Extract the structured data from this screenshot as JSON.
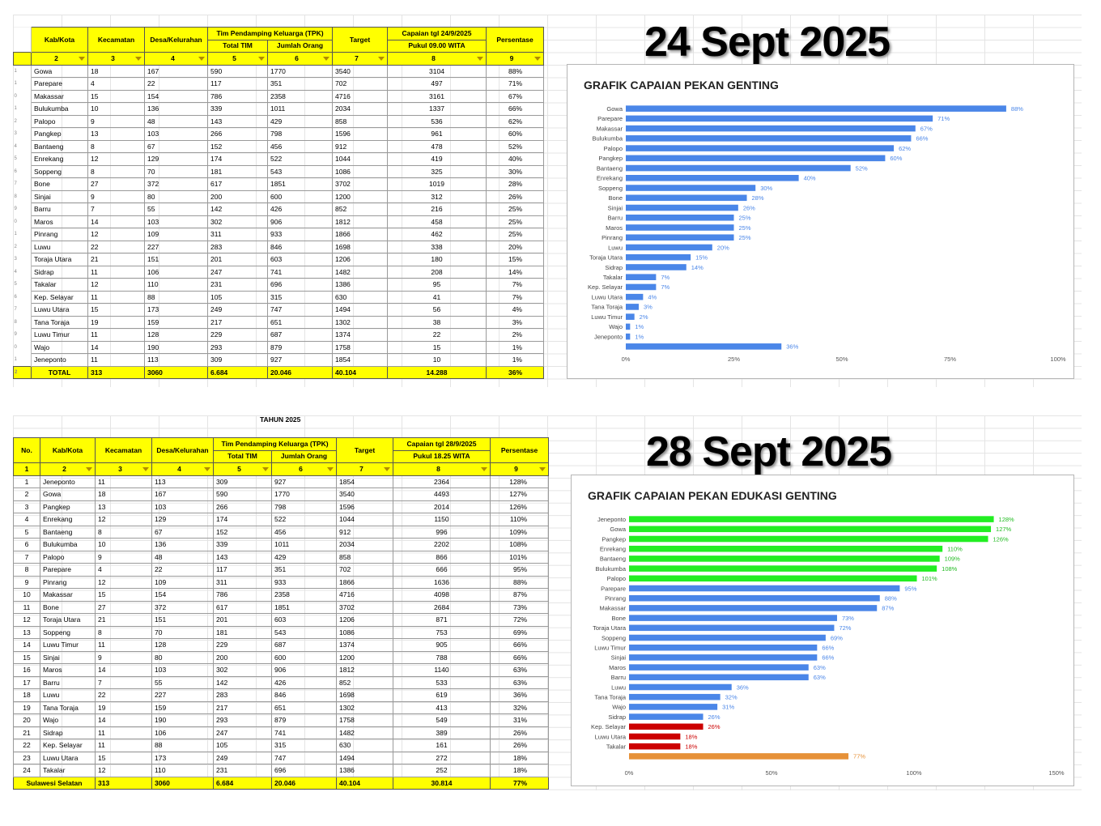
{
  "top": {
    "date_label": "24 Sept 2025",
    "headers": {
      "kab": "Kab/Kota",
      "kec": "Kecamatan",
      "desa": "Desa/Kelurahan",
      "tpk": "Tim Pendamping Keluarga (TPK)",
      "total_tim": "Total TIM",
      "jumlah_orang": "Jumlah Orang",
      "target": "Target",
      "capaian1": "Capaian tgl 24/9/2025",
      "capaian2": "Pukul  09.00 WITA",
      "persen": "Persentase"
    },
    "index_row": [
      "2",
      "3",
      "4",
      "5",
      "6",
      "7",
      "8",
      "9"
    ],
    "row_numbers": [
      "1",
      "1",
      "1",
      "0",
      "1",
      "2",
      "3",
      "4",
      "5",
      "6",
      "7",
      "8",
      "9",
      "0",
      "1",
      "2",
      "3",
      "4",
      "5",
      "6",
      "7",
      "8",
      "9",
      "0",
      "1",
      "2"
    ],
    "rows": [
      [
        "Gowa",
        "18",
        "167",
        "590",
        "1770",
        "3540",
        "3104",
        "88%"
      ],
      [
        "Parepare",
        "4",
        "22",
        "117",
        "351",
        "702",
        "497",
        "71%"
      ],
      [
        "Makassar",
        "15",
        "154",
        "786",
        "2358",
        "4716",
        "3161",
        "67%"
      ],
      [
        "Bulukumba",
        "10",
        "136",
        "339",
        "1011",
        "2034",
        "1337",
        "66%"
      ],
      [
        "Palopo",
        "9",
        "48",
        "143",
        "429",
        "858",
        "536",
        "62%"
      ],
      [
        "Pangkep",
        "13",
        "103",
        "266",
        "798",
        "1596",
        "961",
        "60%"
      ],
      [
        "Bantaeng",
        "8",
        "67",
        "152",
        "456",
        "912",
        "478",
        "52%"
      ],
      [
        "Enrekang",
        "12",
        "129",
        "174",
        "522",
        "1044",
        "419",
        "40%"
      ],
      [
        "Soppeng",
        "8",
        "70",
        "181",
        "543",
        "1086",
        "325",
        "30%"
      ],
      [
        "Bone",
        "27",
        "372",
        "617",
        "1851",
        "3702",
        "1019",
        "28%"
      ],
      [
        "Sinjai",
        "9",
        "80",
        "200",
        "600",
        "1200",
        "312",
        "26%"
      ],
      [
        "Barru",
        "7",
        "55",
        "142",
        "426",
        "852",
        "216",
        "25%"
      ],
      [
        "Maros",
        "14",
        "103",
        "302",
        "906",
        "1812",
        "458",
        "25%"
      ],
      [
        "Pinrang",
        "12",
        "109",
        "311",
        "933",
        "1866",
        "462",
        "25%"
      ],
      [
        "Luwu",
        "22",
        "227",
        "283",
        "846",
        "1698",
        "338",
        "20%"
      ],
      [
        "Toraja Utara",
        "21",
        "151",
        "201",
        "603",
        "1206",
        "180",
        "15%"
      ],
      [
        "Sidrap",
        "11",
        "106",
        "247",
        "741",
        "1482",
        "208",
        "14%"
      ],
      [
        "Takalar",
        "12",
        "110",
        "231",
        "696",
        "1386",
        "95",
        "7%"
      ],
      [
        "Kep. Selayar",
        "11",
        "88",
        "105",
        "315",
        "630",
        "41",
        "7%"
      ],
      [
        "Luwu Utara",
        "15",
        "173",
        "249",
        "747",
        "1494",
        "56",
        "4%"
      ],
      [
        "Tana Toraja",
        "19",
        "159",
        "217",
        "651",
        "1302",
        "38",
        "3%"
      ],
      [
        "Luwu Timur",
        "11",
        "128",
        "229",
        "687",
        "1374",
        "22",
        "2%"
      ],
      [
        "Wajo",
        "14",
        "190",
        "293",
        "879",
        "1758",
        "15",
        "1%"
      ],
      [
        "Jeneponto",
        "11",
        "113",
        "309",
        "927",
        "1854",
        "10",
        "1%"
      ]
    ],
    "total": [
      "TOTAL",
      "313",
      "3060",
      "6.684",
      "20.046",
      "40.104",
      "14.288",
      "36%"
    ],
    "chart_title": "GRAFIK CAPAIAN PEKAN GENTING"
  },
  "bottom": {
    "date_label": "28 Sept 2025",
    "tahun": "TAHUN 2025",
    "headers": {
      "no": "No.",
      "kab": "Kab/Kota",
      "kec": "Kecamatan",
      "desa": "Desa/Kelurahan",
      "tpk": "Tim Pendamping Keluarga (TPK)",
      "total_tim": "Total TIM",
      "jumlah_orang": "Jumlah Orang",
      "target": "Target",
      "capaian1": "Capaian tgl 28/9/2025",
      "capaian2": "Pukul  18.25 WITA",
      "persen": "Persentase"
    },
    "index_row": [
      "1",
      "2",
      "3",
      "4",
      "5",
      "6",
      "7",
      "8",
      "9"
    ],
    "rows": [
      [
        "1",
        "Jeneponto",
        "11",
        "113",
        "309",
        "927",
        "1854",
        "2364",
        "128%"
      ],
      [
        "2",
        "Gowa",
        "18",
        "167",
        "590",
        "1770",
        "3540",
        "4493",
        "127%"
      ],
      [
        "3",
        "Pangkep",
        "13",
        "103",
        "266",
        "798",
        "1596",
        "2014",
        "126%"
      ],
      [
        "4",
        "Enrekang",
        "12",
        "129",
        "174",
        "522",
        "1044",
        "1150",
        "110%"
      ],
      [
        "5",
        "Bantaeng",
        "8",
        "67",
        "152",
        "456",
        "912",
        "996",
        "109%"
      ],
      [
        "6",
        "Bulukumba",
        "10",
        "136",
        "339",
        "1011",
        "2034",
        "2202",
        "108%"
      ],
      [
        "7",
        "Palopo",
        "9",
        "48",
        "143",
        "429",
        "858",
        "866",
        "101%"
      ],
      [
        "8",
        "Parepare",
        "4",
        "22",
        "117",
        "351",
        "702",
        "666",
        "95%"
      ],
      [
        "9",
        "Pinrang",
        "12",
        "109",
        "311",
        "933",
        "1866",
        "1636",
        "88%"
      ],
      [
        "10",
        "Makassar",
        "15",
        "154",
        "786",
        "2358",
        "4716",
        "4098",
        "87%"
      ],
      [
        "11",
        "Bone",
        "27",
        "372",
        "617",
        "1851",
        "3702",
        "2684",
        "73%"
      ],
      [
        "12",
        "Toraja Utara",
        "21",
        "151",
        "201",
        "603",
        "1206",
        "871",
        "72%"
      ],
      [
        "13",
        "Soppeng",
        "8",
        "70",
        "181",
        "543",
        "1086",
        "753",
        "69%"
      ],
      [
        "14",
        "Luwu Timur",
        "11",
        "128",
        "229",
        "687",
        "1374",
        "905",
        "66%"
      ],
      [
        "15",
        "Sinjai",
        "9",
        "80",
        "200",
        "600",
        "1200",
        "788",
        "66%"
      ],
      [
        "16",
        "Maros",
        "14",
        "103",
        "302",
        "906",
        "1812",
        "1140",
        "63%"
      ],
      [
        "17",
        "Barru",
        "7",
        "55",
        "142",
        "426",
        "852",
        "533",
        "63%"
      ],
      [
        "18",
        "Luwu",
        "22",
        "227",
        "283",
        "846",
        "1698",
        "619",
        "36%"
      ],
      [
        "19",
        "Tana Toraja",
        "19",
        "159",
        "217",
        "651",
        "1302",
        "413",
        "32%"
      ],
      [
        "20",
        "Wajo",
        "14",
        "190",
        "293",
        "879",
        "1758",
        "549",
        "31%"
      ],
      [
        "21",
        "Sidrap",
        "11",
        "106",
        "247",
        "741",
        "1482",
        "389",
        "26%"
      ],
      [
        "22",
        "Kep. Selayar",
        "11",
        "88",
        "105",
        "315",
        "630",
        "161",
        "26%"
      ],
      [
        "23",
        "Luwu Utara",
        "15",
        "173",
        "249",
        "747",
        "1494",
        "272",
        "18%"
      ],
      [
        "24",
        "Takalar",
        "12",
        "110",
        "231",
        "696",
        "1386",
        "252",
        "18%"
      ]
    ],
    "total": [
      "Sulawesi Selatan",
      "313",
      "3060",
      "6.684",
      "20.046",
      "40.104",
      "30.814",
      "77%"
    ],
    "chart_title": "GRAFIK CAPAIAN PEKAN EDUKASI GENTING"
  },
  "chart_data": [
    {
      "type": "bar",
      "orientation": "horizontal",
      "title": "GRAFIK CAPAIAN PEKAN GENTING",
      "categories": [
        "Gowa",
        "Parepare",
        "Makassar",
        "Bulukumba",
        "Palopo",
        "Pangkep",
        "Bantaeng",
        "Enrekang",
        "Soppeng",
        "Bone",
        "Sinjai",
        "Barru",
        "Maros",
        "Pinrang",
        "Luwu",
        "Toraja Utara",
        "Sidrap",
        "Takalar",
        "Kep. Selayar",
        "Luwu Utara",
        "Tana Toraja",
        "Luwu Timur",
        "Wajo",
        "Jeneponto",
        ""
      ],
      "values": [
        88,
        71,
        67,
        66,
        62,
        60,
        52,
        40,
        30,
        28,
        26,
        25,
        25,
        25,
        20,
        15,
        14,
        7,
        7,
        4,
        3,
        2,
        1,
        1,
        36
      ],
      "data_labels": [
        "88%",
        "71%",
        "67%",
        "66%",
        "62%",
        "60%",
        "52%",
        "40%",
        "30%",
        "28%",
        "26%",
        "25%",
        "25%",
        "25%",
        "20%",
        "15%",
        "14%",
        "7%",
        "7%",
        "4%",
        "3%",
        "2%",
        "1%",
        "1%",
        "36%"
      ],
      "bar_colors": [
        "#4a86e8",
        "#4a86e8",
        "#4a86e8",
        "#4a86e8",
        "#4a86e8",
        "#4a86e8",
        "#4a86e8",
        "#4a86e8",
        "#4a86e8",
        "#4a86e8",
        "#4a86e8",
        "#4a86e8",
        "#4a86e8",
        "#4a86e8",
        "#4a86e8",
        "#4a86e8",
        "#4a86e8",
        "#4a86e8",
        "#4a86e8",
        "#4a86e8",
        "#4a86e8",
        "#4a86e8",
        "#4a86e8",
        "#4a86e8",
        "#4a86e8"
      ],
      "xlim": [
        0,
        100
      ],
      "xticks": [
        0,
        25,
        50,
        75,
        100
      ],
      "xtick_labels": [
        "0%",
        "25%",
        "50%",
        "75%",
        "100%"
      ],
      "grid": false
    },
    {
      "type": "bar",
      "orientation": "horizontal",
      "title": "GRAFIK CAPAIAN PEKAN EDUKASI GENTING",
      "categories": [
        "Jeneponto",
        "Gowa",
        "Pangkep",
        "Enrekang",
        "Bantaeng",
        "Bulukumba",
        "Palopo",
        "Parepare",
        "Pinrang",
        "Makassar",
        "Bone",
        "Toraja Utara",
        "Soppeng",
        "Luwu Timur",
        "Sinjai",
        "Maros",
        "Barru",
        "Luwu",
        "Tana Toraja",
        "Wajo",
        "Sidrap",
        "Kep. Selayar",
        "Luwu Utara",
        "Takalar",
        ""
      ],
      "values": [
        128,
        127,
        126,
        110,
        109,
        108,
        101,
        95,
        88,
        87,
        73,
        72,
        69,
        66,
        66,
        63,
        63,
        36,
        32,
        31,
        26,
        26,
        18,
        18,
        77
      ],
      "data_labels": [
        "128%",
        "127%",
        "126%",
        "110%",
        "109%",
        "108%",
        "101%",
        "95%",
        "88%",
        "87%",
        "73%",
        "72%",
        "69%",
        "66%",
        "66%",
        "63%",
        "63%",
        "36%",
        "32%",
        "31%",
        "26%",
        "26%",
        "18%",
        "18%",
        "77%"
      ],
      "bar_colors": [
        "#22ee22",
        "#22ee22",
        "#22ee22",
        "#22ee22",
        "#22ee22",
        "#22ee22",
        "#22ee22",
        "#4a86e8",
        "#4a86e8",
        "#4a86e8",
        "#4a86e8",
        "#4a86e8",
        "#4a86e8",
        "#4a86e8",
        "#4a86e8",
        "#4a86e8",
        "#4a86e8",
        "#4a86e8",
        "#4a86e8",
        "#4a86e8",
        "#4a86e8",
        "#cc0000",
        "#cc0000",
        "#cc0000",
        "#e69138"
      ],
      "xlim": [
        0,
        150
      ],
      "xticks": [
        0,
        50,
        100,
        150
      ],
      "xtick_labels": [
        "0%",
        "50%",
        "100%",
        "150%"
      ],
      "grid": false
    }
  ]
}
